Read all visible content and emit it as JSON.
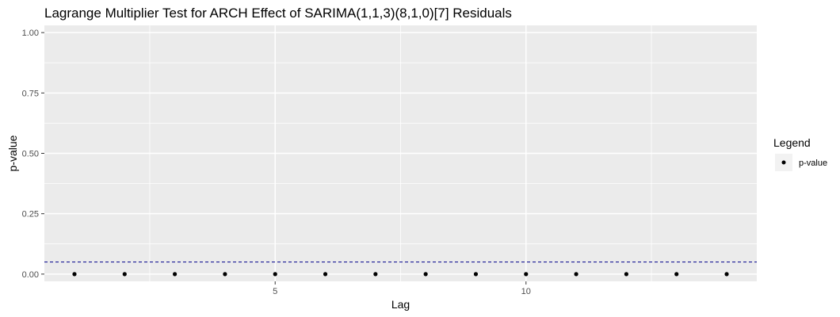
{
  "chart_data": {
    "type": "scatter",
    "title": "Lagrange Multiplier Test for ARCH Effect of SARIMA(1,1,3)(8,1,0)[7] Residuals",
    "xlabel": "Lag",
    "ylabel": "p-value",
    "xlim": [
      0.4,
      14.6
    ],
    "ylim": [
      -0.03,
      1.03
    ],
    "x_ticks": [
      5,
      10
    ],
    "y_ticks": [
      0.0,
      0.25,
      0.5,
      0.75,
      1.0
    ],
    "x_tick_labels": [
      "5",
      "10"
    ],
    "y_tick_labels": [
      "0.00",
      "0.25",
      "0.50",
      "0.75",
      "1.00"
    ],
    "grid": true,
    "series": [
      {
        "name": "p-value",
        "x": [
          1,
          2,
          3,
          4,
          5,
          6,
          7,
          8,
          9,
          10,
          11,
          12,
          13,
          14
        ],
        "y": [
          0,
          0,
          0,
          0,
          0,
          0,
          0,
          0,
          0,
          0,
          0,
          0,
          0,
          0
        ]
      }
    ],
    "reference_line": {
      "y": 0.05,
      "style": "dashed",
      "color": "#00008b"
    },
    "legend": {
      "title": "Legend",
      "placement": "right",
      "entries": [
        "p-value"
      ]
    },
    "colors": {
      "panel": "#ebebeb",
      "grid": "#ffffff",
      "point": "#000000"
    }
  }
}
